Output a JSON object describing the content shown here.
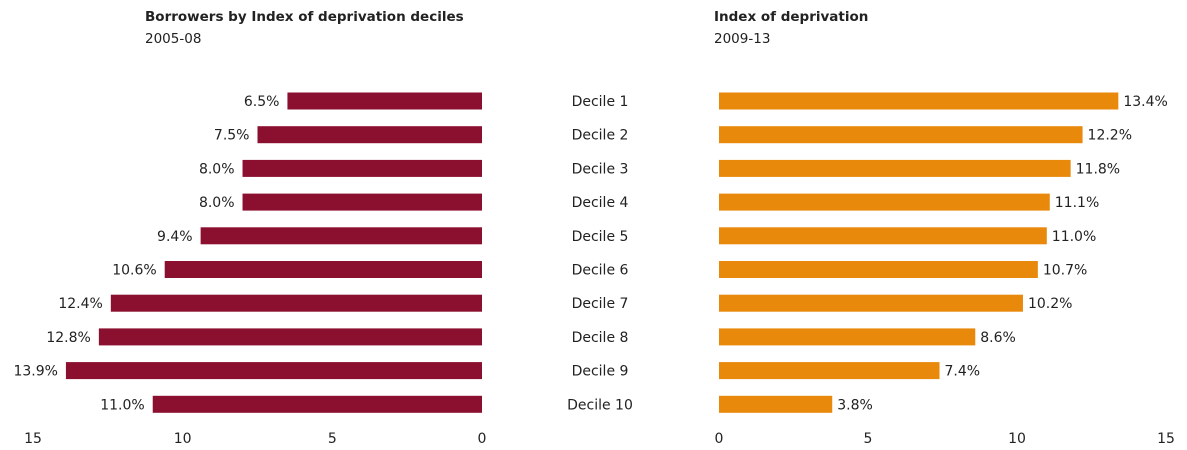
{
  "chart_data": [
    {
      "type": "bar",
      "title": "Borrowers by Index of deprivation deciles",
      "subtitle": "2005-08",
      "categories": [
        "Decile 1",
        "Decile 2",
        "Decile 3",
        "Decile 4",
        "Decile 5",
        "Decile 6",
        "Decile 7",
        "Decile 8",
        "Decile 9",
        "Decile 10"
      ],
      "values": [
        6.5,
        7.5,
        8.0,
        8.0,
        9.4,
        10.6,
        12.4,
        12.8,
        13.9,
        11.0
      ],
      "value_labels": [
        "6.5%",
        "7.5%",
        "8.0%",
        "8.0%",
        "9.4%",
        "10.6%",
        "12.4%",
        "12.8%",
        "13.9%",
        "11.0%"
      ],
      "color": "#8b0f2e",
      "xlim": [
        15,
        0
      ],
      "xticks": [
        15,
        10,
        5,
        0
      ]
    },
    {
      "type": "bar",
      "title": "Index of deprivation",
      "subtitle": "2009-13",
      "values": [
        13.4,
        12.2,
        11.8,
        11.1,
        11.0,
        10.7,
        10.2,
        8.6,
        7.4,
        3.8
      ],
      "value_labels": [
        "13.4%",
        "12.2%",
        "11.8%",
        "11.1%",
        "11.0%",
        "10.7%",
        "10.2%",
        "8.6%",
        "7.4%",
        "3.8%"
      ],
      "color": "#e8890c",
      "xlim": [
        0,
        15
      ],
      "xticks": [
        0,
        5,
        10,
        15
      ]
    }
  ]
}
